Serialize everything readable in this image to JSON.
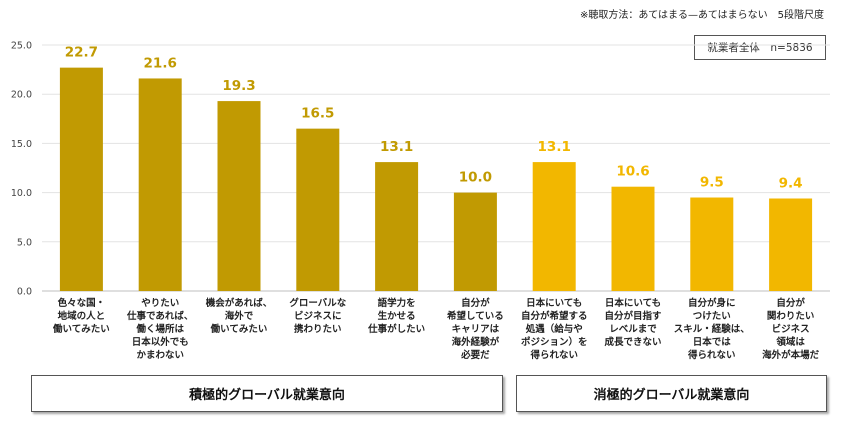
{
  "note": "※聴取方法：あてはまる—あてはまらない　5段階尺度",
  "sample_label": "就業者全体　n=5836",
  "groups": [
    {
      "label": "積極的グローバル就業意向",
      "color": "#c19a02"
    },
    {
      "label": "消極的グローバル就業意向",
      "color": "#f2b700"
    }
  ],
  "chart_data": {
    "type": "bar",
    "ylim": [
      0,
      25
    ],
    "yticks": [
      "0.0",
      "5.0",
      "10.0",
      "15.0",
      "20.0",
      "25.0"
    ],
    "grid": true,
    "categories": [
      [
        "色々な国・",
        "地域の人と",
        "働いてみたい"
      ],
      [
        "やりたい",
        "仕事であれば、",
        "働く場所は",
        "日本以外でも",
        "かまわない"
      ],
      [
        "機会があれば、",
        "海外で",
        "働いてみたい"
      ],
      [
        "グローバルな",
        "ビジネスに",
        "携わりたい"
      ],
      [
        "語学力を",
        "生かせる",
        "仕事がしたい"
      ],
      [
        "自分が",
        "希望している",
        "キャリアは",
        "海外経験が",
        "必要だ"
      ],
      [
        "日本にいても",
        "自分が希望する",
        "処遇（給与や",
        "ポジション）を",
        "得られない"
      ],
      [
        "日本にいても",
        "自分が目指す",
        "レベルまで",
        "成長できない"
      ],
      [
        "自分が身に",
        "つけたい",
        "スキル・経験は、",
        "日本では",
        "得られない"
      ],
      [
        "自分が",
        "関わりたい",
        "ビジネス",
        "領域は",
        "海外が本場だ"
      ]
    ],
    "values": [
      22.7,
      21.6,
      19.3,
      16.5,
      13.1,
      10.0,
      13.1,
      10.6,
      9.5,
      9.4
    ],
    "value_labels": [
      "22.7",
      "21.6",
      "19.3",
      "16.5",
      "13.1",
      "10.0",
      "13.1",
      "10.6",
      "9.5",
      "9.4"
    ],
    "group_index": [
      0,
      0,
      0,
      0,
      0,
      0,
      1,
      1,
      1,
      1
    ]
  }
}
